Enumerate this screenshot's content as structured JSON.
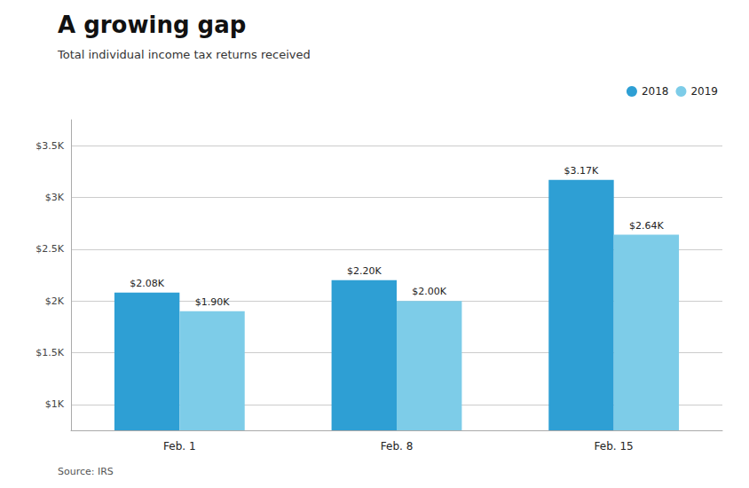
{
  "chart_data": {
    "type": "bar",
    "title": "A growing gap",
    "subtitle": "Total individual income tax returns received",
    "source": "Source: IRS",
    "categories": [
      "Feb. 1",
      "Feb. 8",
      "Feb. 15"
    ],
    "series": [
      {
        "name": "2018",
        "color": "#2e9fd4",
        "values": [
          2.08,
          2.2,
          3.17
        ],
        "value_labels": [
          "$2.08K",
          "$2.20K",
          "$3.17K"
        ]
      },
      {
        "name": "2019",
        "color": "#7dcce8",
        "values": [
          1.9,
          2.0,
          2.64
        ],
        "value_labels": [
          "$1.90K",
          "$2.00K",
          "$2.64K"
        ]
      }
    ],
    "ylim": [
      0.75,
      3.75
    ],
    "yticks": [
      {
        "value": 1.0,
        "label": "$1K"
      },
      {
        "value": 1.5,
        "label": "$1.5K"
      },
      {
        "value": 2.0,
        "label": "$2K"
      },
      {
        "value": 2.5,
        "label": "$2.5K"
      },
      {
        "value": 3.0,
        "label": "$3K"
      },
      {
        "value": 3.5,
        "label": "$3.5K"
      }
    ],
    "grid": true,
    "legend": "upper right",
    "data_labels": true
  }
}
